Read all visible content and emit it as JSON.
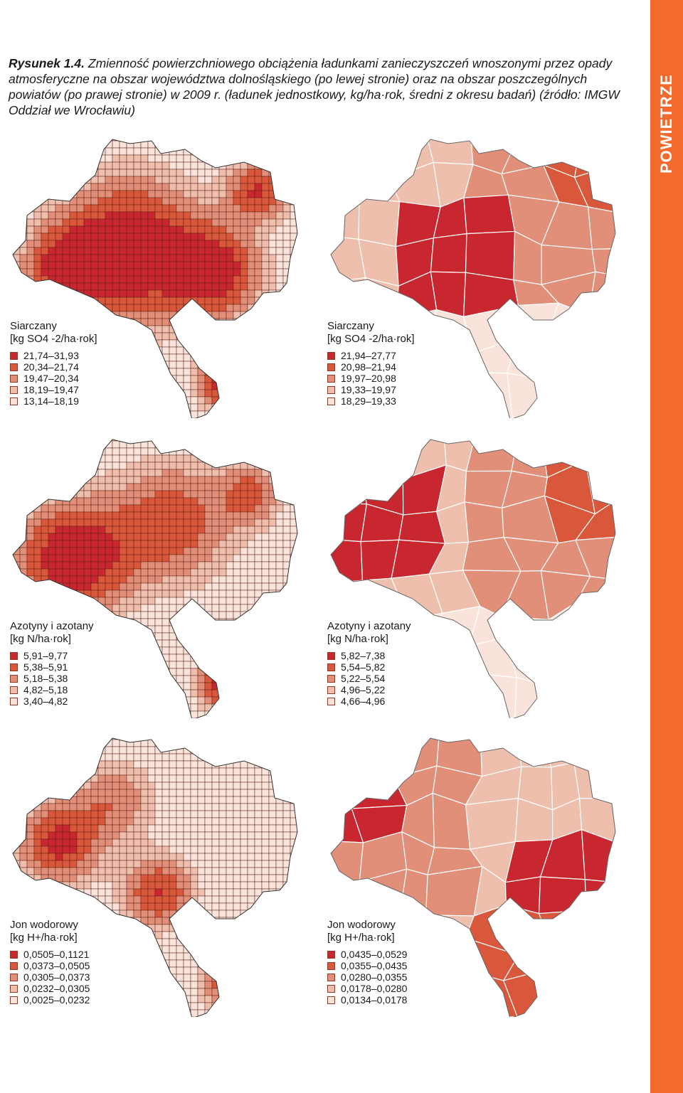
{
  "caption": {
    "label": "Rysunek 1.4.",
    "text": "Zmienność powierzchniowego obciążenia ładunkami zanieczyszczeń wnoszonymi przez opady atmosferyczne na obszar województwa dolnośląskiego (po lewej stronie) oraz na obszar poszczególnych powiatów (po prawej stronie) w 2009 r. (ładunek jednostkowy, kg/ha·rok, średni z okresu badań) (źródło: IMGW Oddział we Wrocławiu)"
  },
  "side_label": "POWIETRZE",
  "colors": {
    "c1": "#c9272f",
    "c2": "#d9573a",
    "c3": "#e28f79",
    "c4": "#efbfae",
    "c5": "#f9e3da",
    "band": "#f26a2e"
  },
  "legends": [
    {
      "title": "Siarczany",
      "unit": "[kg SO4 -2/ha·rok]",
      "classes": [
        "21,74–31,93",
        "20,34–21,74",
        "19,47–20,34",
        "18,19–19,47",
        "13,14–18,19"
      ]
    },
    {
      "title": "Siarczany",
      "unit": "[kg SO4 -2/ha·rok]",
      "classes": [
        "21,94–27,77",
        "20,98–21,94",
        "19,97–20,98",
        "19,33–19,97",
        "18,29–19,33"
      ]
    },
    {
      "title": "Azotyny i azotany",
      "unit": "[kg N/ha·rok]",
      "classes": [
        "5,91–9,77",
        "5,38–5,91",
        "5,18–5,38",
        "4,82–5,18",
        "3,40–4,82"
      ]
    },
    {
      "title": "Azotyny i azotany",
      "unit": "[kg N/ha·rok]",
      "classes": [
        "5,82–7,38",
        "5,54–5,82",
        "5,22–5,54",
        "4,96–5,22",
        "4,66–4,96"
      ]
    },
    {
      "title": "Jon wodorowy",
      "unit": "[kg H+/ha·rok]",
      "classes": [
        "0,0505–0,1121",
        "0,0373–0,0505",
        "0,0305–0,0373",
        "0,0232–0,0305",
        "0,0025–0,0232"
      ]
    },
    {
      "title": "Jon wodorowy",
      "unit": "[kg H+/ha·rok]",
      "classes": [
        "0,0435–0,0529",
        "0,0355–0,0435",
        "0,0280–0,0355",
        "0,0178–0,0280",
        "0,0134–0,0178"
      ]
    }
  ]
}
